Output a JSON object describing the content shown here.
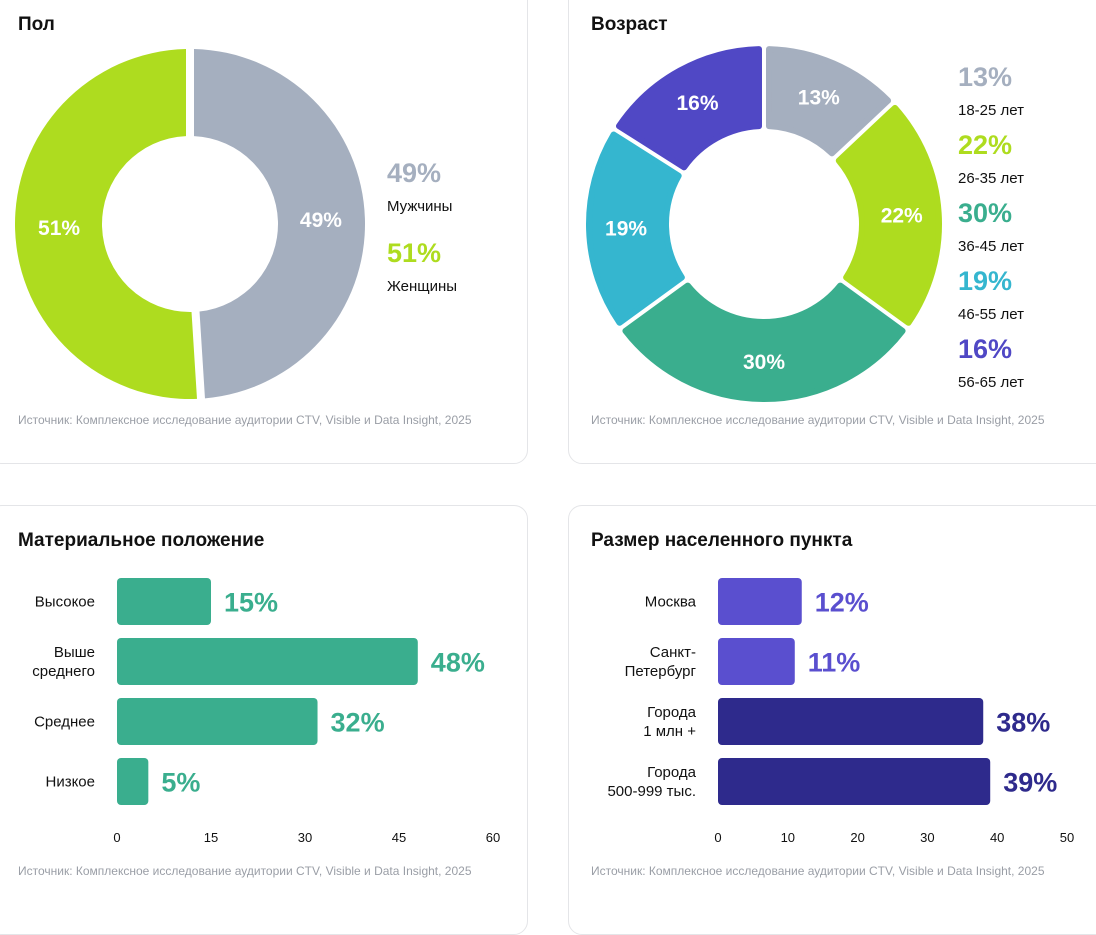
{
  "colors": {
    "gray": "#a5afbf",
    "lime": "#aedc1f",
    "teal": "#3aae8e",
    "cyan": "#35b6cf",
    "indigo": "#5048c5",
    "violet": "#5a4fcf",
    "navy": "#2e2a8c"
  },
  "chart_data": [
    {
      "id": "gender",
      "type": "pie",
      "title": "Пол",
      "source": "Источник: Комплексное исследование аудитории CTV, Visible и Data Insight, 2025",
      "slices": [
        {
          "label": "Мужчины",
          "value": 49,
          "display": "49%",
          "color": "#a5afbf"
        },
        {
          "label": "Женщины",
          "value": 51,
          "display": "51%",
          "color": "#aedc1f"
        }
      ],
      "legend": "right"
    },
    {
      "id": "age",
      "type": "pie",
      "title": "Возраст",
      "source": "Источник: Комплексное исследование аудитории CTV, Visible и Data Insight, 2025",
      "slices": [
        {
          "label": "18-25 лет",
          "value": 13,
          "display": "13%",
          "color": "#a5afbf"
        },
        {
          "label": "26-35 лет",
          "value": 22,
          "display": "22%",
          "color": "#aedc1f"
        },
        {
          "label": "36-45 лет",
          "value": 30,
          "display": "30%",
          "color": "#3aae8e"
        },
        {
          "label": "46-55 лет",
          "value": 19,
          "display": "19%",
          "color": "#35b6cf"
        },
        {
          "label": "56-65 лет",
          "value": 16,
          "display": "16%",
          "color": "#5048c5"
        }
      ],
      "legend": "right"
    },
    {
      "id": "income",
      "type": "bar",
      "orientation": "horizontal",
      "title": "Материальное положение",
      "source": "Источник: Комплексное исследование аудитории CTV, Visible и Data Insight, 2025",
      "categories": [
        [
          "Высокое"
        ],
        [
          "Выше",
          "среднего"
        ],
        [
          "Среднее"
        ],
        [
          "Низкое"
        ]
      ],
      "values": [
        15,
        48,
        32,
        5
      ],
      "value_labels": [
        "15%",
        "48%",
        "32%",
        "5%"
      ],
      "colors": [
        "#3aae8e",
        "#3aae8e",
        "#3aae8e",
        "#3aae8e"
      ],
      "xlim": [
        0,
        60
      ],
      "xticks": [
        "0",
        "15",
        "30",
        "45",
        "60"
      ],
      "grid": false
    },
    {
      "id": "city",
      "type": "bar",
      "orientation": "horizontal",
      "title": "Размер населенного пункта",
      "source": "Источник: Комплексное исследование аудитории CTV, Visible и Data Insight, 2025",
      "categories": [
        [
          "Москва"
        ],
        [
          "Санкт-",
          "Петербург"
        ],
        [
          "Города",
          "1 млн +"
        ],
        [
          "Города",
          "500-999 тыс."
        ]
      ],
      "values": [
        12,
        11,
        38,
        39
      ],
      "value_labels": [
        "12%",
        "11%",
        "38%",
        "39%"
      ],
      "colors": [
        "#5a4fcf",
        "#5a4fcf",
        "#2e2a8c",
        "#2e2a8c"
      ],
      "xlim": [
        0,
        50
      ],
      "xticks": [
        "0",
        "10",
        "20",
        "30",
        "40",
        "50"
      ],
      "grid": false
    }
  ]
}
